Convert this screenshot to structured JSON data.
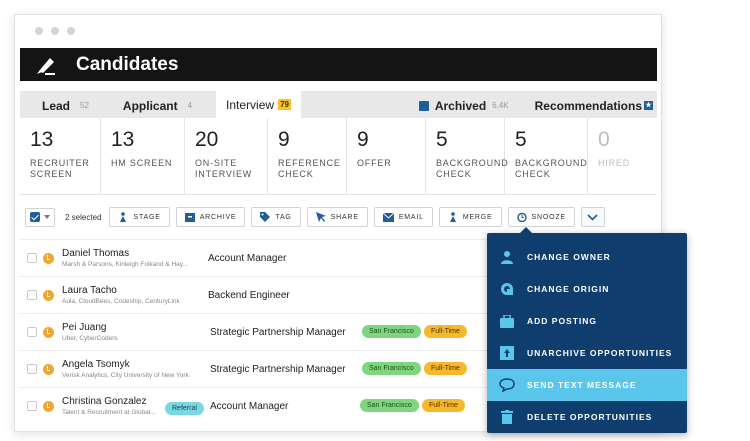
{
  "header": {
    "title": "Candidates"
  },
  "tabs": [
    {
      "label": "Lead",
      "count": "52"
    },
    {
      "label": "Applicant",
      "count": "4"
    },
    {
      "label": "Interview",
      "count": "79"
    }
  ],
  "tabs_right": [
    {
      "label": "Archived",
      "count": "6.4K"
    },
    {
      "label": "Recommendations"
    }
  ],
  "stages": [
    {
      "num": "13",
      "label": "RECRUITER SCREEN"
    },
    {
      "num": "13",
      "label": "HM SCREEN"
    },
    {
      "num": "20",
      "label": "ON-SITE INTERVIEW"
    },
    {
      "num": "9",
      "label": "REFERENCE CHECK"
    },
    {
      "num": "9",
      "label": "OFFER"
    },
    {
      "num": "5",
      "label": "BACKGROUND CHECK"
    },
    {
      "num": "5",
      "label": "BACKGROUND CHECK"
    },
    {
      "num": "0",
      "label": "HIRED"
    }
  ],
  "actions": {
    "selected": "2 selected",
    "stage": "STAGE",
    "archive": "ARCHIVE",
    "tag": "TAG",
    "share": "SHARE",
    "email": "EMAIL",
    "merge": "MERGE",
    "snooze": "SNOOZE"
  },
  "rows": [
    {
      "name": "Daniel Thomas",
      "sub": "Marsh & Parsons, Kinleigh Folkand & Hay...",
      "position": "Account Manager"
    },
    {
      "name": "Laura Tacho",
      "sub": "Aula, CloudBees, Codeship, CenturyLink",
      "position": "Backend Engineer"
    },
    {
      "name": "Pei Juang",
      "sub": "Uber, CyberCoders",
      "position": "Strategic Partnership Manager",
      "location": "San Francisco",
      "type": "Full-Time"
    },
    {
      "name": "Angela Tsomyk",
      "sub": "Verisk Analytics, City University of New York",
      "position": "Strategic Partnership Manager",
      "location": "San Francisco",
      "type": "Full-Time"
    },
    {
      "name": "Christina Gonzalez",
      "sub": "Talent & Recruitment at Global...",
      "referral": "Referral",
      "position": "Account Manager",
      "location": "San Francisco",
      "type": "Full-Time"
    }
  ],
  "menu": [
    {
      "label": "CHANGE OWNER",
      "icon": "person-icon"
    },
    {
      "label": "CHANGE ORIGIN",
      "icon": "origin-icon"
    },
    {
      "label": "ADD POSTING",
      "icon": "briefcase-icon"
    },
    {
      "label": "UNARCHIVE OPPORTUNITIES",
      "icon": "unarchive-icon"
    },
    {
      "label": "SEND TEXT MESSAGE",
      "icon": "chat-icon"
    },
    {
      "label": "DELETE OPPORTUNITIES",
      "icon": "trash-icon"
    }
  ],
  "colors": {
    "topbar": "#141414",
    "menu": "#0f3d6e",
    "menu_highlight": "#5bc6ec",
    "accent": "#1f5d9c",
    "interview_badge": "#f7c325"
  }
}
